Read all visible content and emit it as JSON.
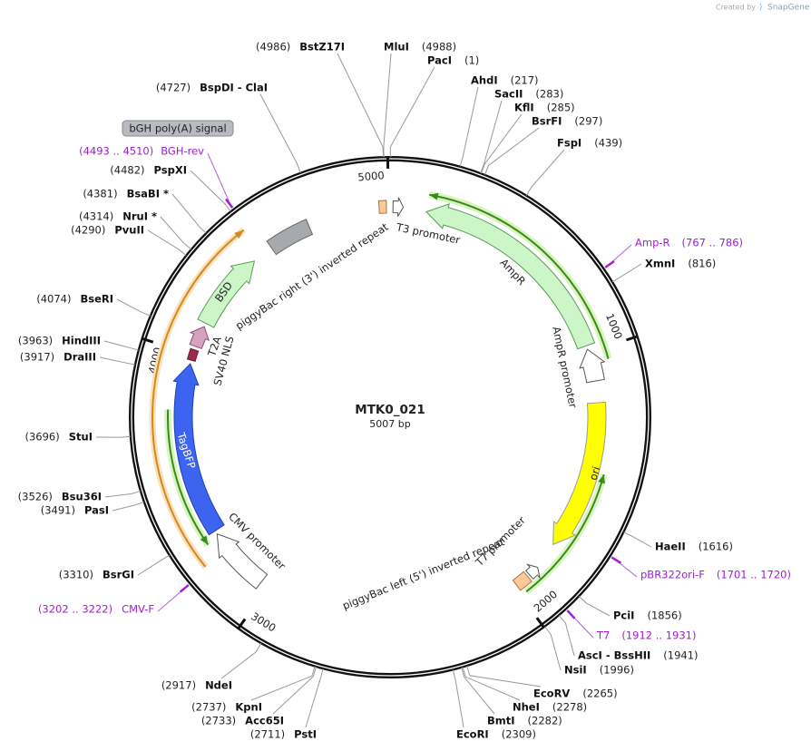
{
  "header": {
    "credit": "Created by",
    "brand": "SnapGene"
  },
  "plasmid": {
    "name": "MTK0_021",
    "length": "5007 bp",
    "ruler_ticks": [
      1000,
      2000,
      3000,
      4000,
      5000
    ]
  },
  "sites": [
    {
      "name": "BstZ17I",
      "position": "(4986)"
    },
    {
      "name": "MluI",
      "position": "(4988)"
    },
    {
      "name": "PacI",
      "position": "(1)"
    },
    {
      "name": "AhdI",
      "position": "(217)"
    },
    {
      "name": "SacII",
      "position": "(283)"
    },
    {
      "name": "KflI",
      "position": "(285)"
    },
    {
      "name": "BsrFI",
      "position": "(297)"
    },
    {
      "name": "FspI",
      "position": "(439)"
    },
    {
      "name": "XmnI",
      "position": "(816)"
    },
    {
      "name": "HaeII",
      "position": "(1616)"
    },
    {
      "name": "PciI",
      "position": "(1856)"
    },
    {
      "name": "AscI - BssHII",
      "position": "(1941)"
    },
    {
      "name": "NsiI",
      "position": "(1996)"
    },
    {
      "name": "EcoRV",
      "position": "(2265)"
    },
    {
      "name": "NheI",
      "position": "(2278)"
    },
    {
      "name": "BmtI",
      "position": "(2282)"
    },
    {
      "name": "EcoRI",
      "position": "(2309)"
    },
    {
      "name": "PstI",
      "position": "(2711)"
    },
    {
      "name": "Acc65I",
      "position": "(2733)"
    },
    {
      "name": "KpnI",
      "position": "(2737)"
    },
    {
      "name": "NdeI",
      "position": "(2917)"
    },
    {
      "name": "BsrGI",
      "position": "(3310)"
    },
    {
      "name": "PasI",
      "position": "(3491)"
    },
    {
      "name": "Bsu36I",
      "position": "(3526)"
    },
    {
      "name": "StuI",
      "position": "(3696)"
    },
    {
      "name": "DraIII",
      "position": "(3917)"
    },
    {
      "name": "HindIII",
      "position": "(3963)"
    },
    {
      "name": "BseRI",
      "position": "(4074)"
    },
    {
      "name": "PvuII",
      "position": "(4290)"
    },
    {
      "name": "NruI *",
      "position": "(4314)"
    },
    {
      "name": "BsaBI *",
      "position": "(4381)"
    },
    {
      "name": "PspXI",
      "position": "(4482)"
    },
    {
      "name": "BspDI - ClaI",
      "position": "(4727)"
    }
  ],
  "primers": [
    {
      "name": "BGH-rev",
      "range": "(4493 .. 4510)"
    },
    {
      "name": "Amp-R",
      "range": "(767 .. 786)"
    },
    {
      "name": "pBR322ori-F",
      "range": "(1701 .. 1720)"
    },
    {
      "name": "T7",
      "range": "(1912 .. 1931)"
    },
    {
      "name": "CMV-F",
      "range": "(3202 .. 3222)"
    }
  ],
  "features": [
    {
      "label": "T3 promoter"
    },
    {
      "label": "AmpR"
    },
    {
      "label": "AmpR promoter"
    },
    {
      "label": "ori"
    },
    {
      "label": "T7 promoter"
    },
    {
      "label": "piggyBac left (5') inverted repeat"
    },
    {
      "label": "CMV promoter"
    },
    {
      "label": "TagBFP"
    },
    {
      "label": "SV40 NLS"
    },
    {
      "label": "T2A"
    },
    {
      "label": "BSD"
    },
    {
      "label": "piggyBac right (3') inverted repeat"
    },
    {
      "label": "bGH poly(A) signal"
    }
  ]
}
